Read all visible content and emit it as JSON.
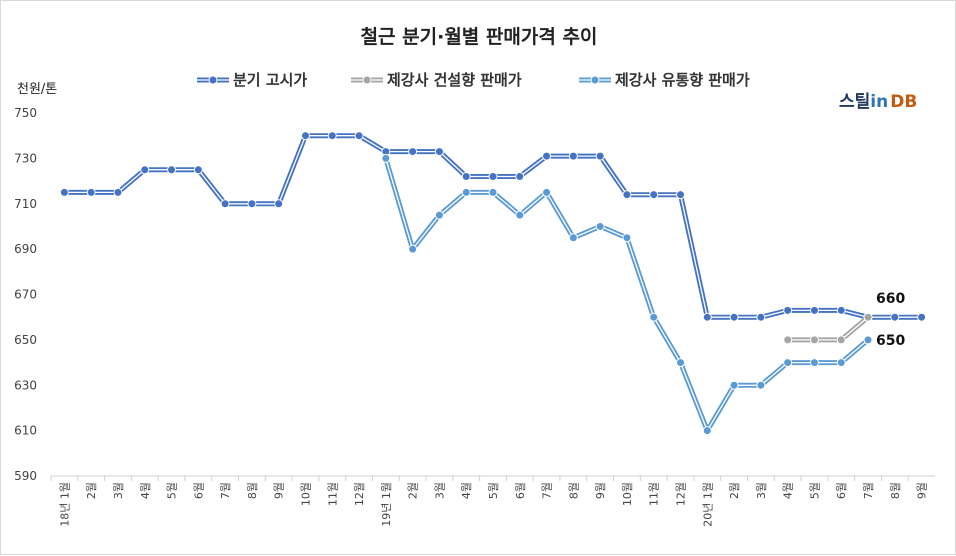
{
  "chart_data": {
    "type": "line",
    "title": "철근 분기·월별 판매가격 추이",
    "ylabel": "천원/톤",
    "ylim": [
      590,
      750
    ],
    "yticks": [
      590,
      610,
      630,
      650,
      670,
      690,
      710,
      730,
      750
    ],
    "categories": [
      "18년 1월",
      "2월",
      "3월",
      "4월",
      "5월",
      "6월",
      "7월",
      "8월",
      "9월",
      "10월",
      "11월",
      "12월",
      "19년 1월",
      "2월",
      "3월",
      "4월",
      "5월",
      "6월",
      "7월",
      "8월",
      "9월",
      "10월",
      "11월",
      "12월",
      "20년 1월",
      "2월",
      "3월",
      "4월",
      "5월",
      "6월",
      "7월",
      "8월",
      "9월"
    ],
    "series": [
      {
        "name": "분기 고시가",
        "color": "#4472c4",
        "values": [
          715,
          715,
          715,
          725,
          725,
          725,
          710,
          710,
          710,
          740,
          740,
          740,
          733,
          733,
          733,
          722,
          722,
          722,
          731,
          731,
          731,
          714,
          714,
          714,
          660,
          660,
          660,
          663,
          663,
          663,
          660,
          660,
          660
        ]
      },
      {
        "name": "제강사 건설향 판매가",
        "color": "#a5a5a5",
        "values": [
          null,
          null,
          null,
          null,
          null,
          null,
          null,
          null,
          null,
          null,
          null,
          null,
          null,
          null,
          null,
          null,
          null,
          null,
          null,
          null,
          null,
          null,
          null,
          null,
          null,
          null,
          null,
          650,
          650,
          650,
          660,
          null,
          null
        ]
      },
      {
        "name": "제강사 유통향 판매가",
        "color": "#5b9bd5",
        "values": [
          null,
          null,
          null,
          null,
          null,
          null,
          null,
          null,
          null,
          null,
          null,
          null,
          730,
          690,
          705,
          715,
          715,
          705,
          715,
          695,
          700,
          695,
          660,
          640,
          610,
          630,
          630,
          640,
          640,
          640,
          650,
          null,
          null
        ]
      }
    ],
    "annotations": [
      {
        "text": "660",
        "category_index": 30,
        "value": 660
      },
      {
        "text": "650",
        "category_index": 30,
        "value": 650
      }
    ],
    "legend_position": "top",
    "grid": false
  },
  "brand": {
    "part1": "스틸",
    "part2": "in",
    "part3": "DB"
  }
}
